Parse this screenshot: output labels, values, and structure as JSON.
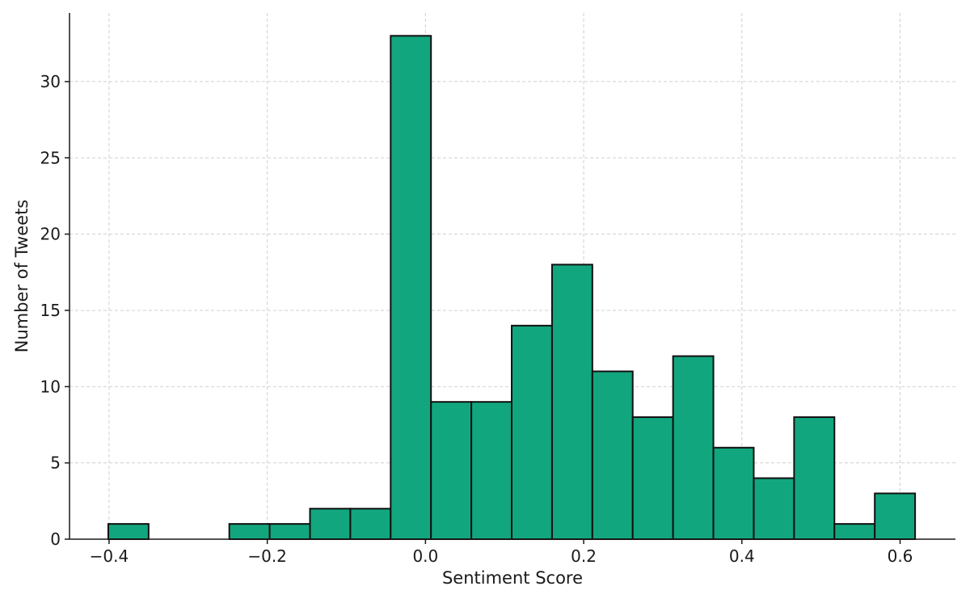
{
  "chart_data": {
    "type": "bar",
    "title": "",
    "xlabel": "Sentiment Score",
    "ylabel": "Number of Tweets",
    "xlim": [
      -0.45,
      0.67
    ],
    "ylim": [
      0,
      34.5
    ],
    "x_ticks": [
      -0.4,
      -0.2,
      0.0,
      0.2,
      0.4,
      0.6
    ],
    "x_tick_labels": [
      "−0.4",
      "−0.2",
      "0.0",
      "0.2",
      "0.4",
      "0.6"
    ],
    "y_ticks": [
      0,
      5,
      10,
      15,
      20,
      25,
      30
    ],
    "y_tick_labels": [
      "0",
      "5",
      "10",
      "15",
      "20",
      "25",
      "30"
    ],
    "grid": true,
    "bar_color": "#12a67e",
    "edge_color": "#111111",
    "bins": [
      {
        "x0": -0.401,
        "x1": -0.35,
        "count": 1
      },
      {
        "x0": -0.35,
        "x1": -0.299,
        "count": 0
      },
      {
        "x0": -0.299,
        "x1": -0.248,
        "count": 0
      },
      {
        "x0": -0.248,
        "x1": -0.197,
        "count": 1
      },
      {
        "x0": -0.197,
        "x1": -0.146,
        "count": 1
      },
      {
        "x0": -0.146,
        "x1": -0.095,
        "count": 2
      },
      {
        "x0": -0.095,
        "x1": -0.044,
        "count": 2
      },
      {
        "x0": -0.044,
        "x1": 0.007,
        "count": 33
      },
      {
        "x0": 0.007,
        "x1": 0.058,
        "count": 9
      },
      {
        "x0": 0.058,
        "x1": 0.109,
        "count": 9
      },
      {
        "x0": 0.109,
        "x1": 0.16,
        "count": 14
      },
      {
        "x0": 0.16,
        "x1": 0.211,
        "count": 18
      },
      {
        "x0": 0.211,
        "x1": 0.262,
        "count": 11
      },
      {
        "x0": 0.262,
        "x1": 0.313,
        "count": 8
      },
      {
        "x0": 0.313,
        "x1": 0.364,
        "count": 12
      },
      {
        "x0": 0.364,
        "x1": 0.415,
        "count": 6
      },
      {
        "x0": 0.415,
        "x1": 0.466,
        "count": 4
      },
      {
        "x0": 0.466,
        "x1": 0.517,
        "count": 8
      },
      {
        "x0": 0.517,
        "x1": 0.568,
        "count": 1
      },
      {
        "x0": 0.568,
        "x1": 0.619,
        "count": 3
      }
    ]
  }
}
